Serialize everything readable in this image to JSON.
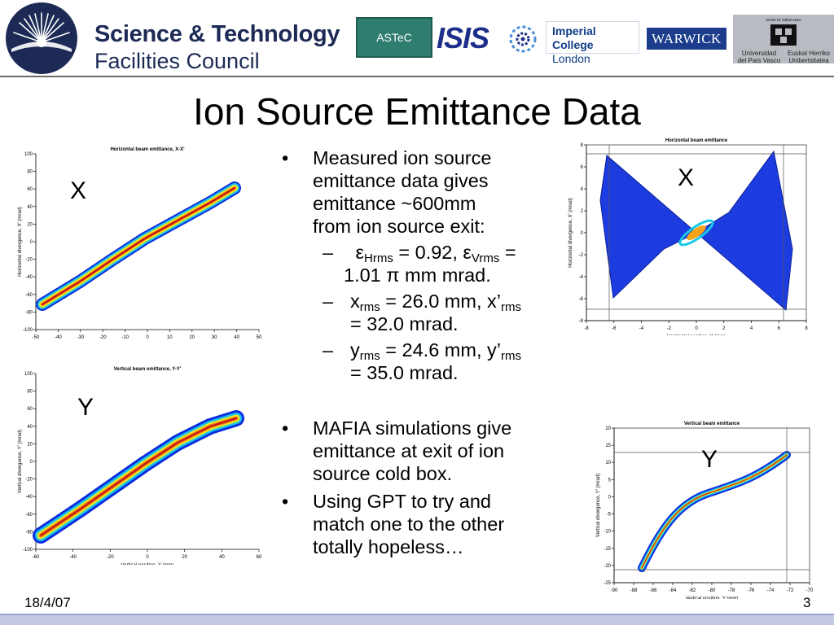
{
  "header": {
    "org_line1": "Science & Technology",
    "org_line2": "Facilities Council",
    "logos": {
      "astec": "ASTeC",
      "isis": "ISIS",
      "imperial_line1": "Imperial College",
      "imperial_line2": "London",
      "warwick": "WARWICK",
      "upv_top": "eman ta zabal zazu",
      "upv_left_1": "Universidad",
      "upv_left_2": "del País Vasco",
      "upv_right_1": "Euskal Herriko",
      "upv_right_2": "Unibertsitatea"
    },
    "colors": {
      "stfc_text": "#1c2a55",
      "astec_bg": "#2f7d6e",
      "warwick_bg": "#1c3c8c",
      "isis_text": "#1d2f8a"
    }
  },
  "title": "Ion Source Emittance Data",
  "plots": {
    "hx": {
      "title": "Horizontal beam emittance, X-X'",
      "xlabel": "Horizontal position, X (mm)",
      "ylabel": "Horizontal divergence, X' (mrad)",
      "xticks": [
        "-50",
        "-40",
        "-30",
        "-20",
        "-10",
        "0",
        "10",
        "20",
        "30",
        "40",
        "50"
      ],
      "yticks": [
        "100",
        "80",
        "60",
        "40",
        "20",
        "0",
        "-20",
        "-40",
        "-60",
        "-80",
        "-100"
      ],
      "label": "X"
    },
    "vy": {
      "title": "Vertical beam emittance, Y-Y'",
      "xlabel": "Vertical position, Y (mm)",
      "ylabel": "Vertical divergence, Y' (mrad)",
      "xticks": [
        "-60",
        "-40",
        "-20",
        "0",
        "20",
        "40",
        "60"
      ],
      "yticks": [
        "100",
        "80",
        "60",
        "40",
        "20",
        "0",
        "-20",
        "-40",
        "-60",
        "-80",
        "-100"
      ],
      "label": "Y"
    },
    "sx": {
      "title": "Horizontal beam emittance",
      "xlabel": "Horizontal position, X (mm)",
      "ylabel": "Horizontal divergence, X' (mrad)",
      "xticks": [
        "-8",
        "-6",
        "-4",
        "-2",
        "0",
        "2",
        "4",
        "6",
        "8"
      ],
      "yticks": [
        "8",
        "6",
        "4",
        "2",
        "0",
        "-2",
        "-4",
        "-6",
        "-8"
      ],
      "label": "X"
    },
    "sy": {
      "title": "Vertical beam emittance",
      "xlabel": "Vertical position, Y (mm)",
      "ylabel": "Vertical divergence, Y' (mrad)",
      "xticks": [
        "-90",
        "-88",
        "-86",
        "-84",
        "-82",
        "-80",
        "-78",
        "-76",
        "-74",
        "-72",
        "-70"
      ],
      "yticks": [
        "20",
        "15",
        "10",
        "5",
        "0",
        "-5",
        "-10",
        "-15",
        "-20",
        "-25"
      ],
      "label": "Y"
    }
  },
  "bullets": {
    "b1_line1": "Measured ion source",
    "b1_line2": "emittance data gives",
    "b1_line3": "emittance ~600mm",
    "b1_line4": "from ion source exit:",
    "dash": "–",
    "dot": "•",
    "eps": "ε",
    "pi": "π",
    "s1_hrms_sub": "Hrms",
    "s1_mid": " = 0.92, ",
    "s1_vrms_sub": "Vrms",
    "s1_tail": " =",
    "s1_line2_a": "1.01 ",
    "s1_line2_b": " mm mrad.",
    "s2_x": "x",
    "s2_rms_sub": "rms",
    "s2_mid": " = 26.0 mm, x’",
    "s2_rms_sub2": "rms",
    "s2_line2": "= 32.0 mrad.",
    "s3_y": "y",
    "s3_rms_sub": "rms",
    "s3_mid": " = 24.6 mm, y’",
    "s3_rms_sub2": "rms",
    "s3_line2": "= 35.0 mrad.",
    "b2_line1": "MAFIA simulations give",
    "b2_line2": "emittance at exit of ion",
    "b2_line3": "source cold box.",
    "b3_line1": "Using GPT to try and",
    "b3_line2": "match one to the other",
    "b3_line3": "totally hopeless…"
  },
  "footer": {
    "date": "18/4/07",
    "page": "3"
  }
}
